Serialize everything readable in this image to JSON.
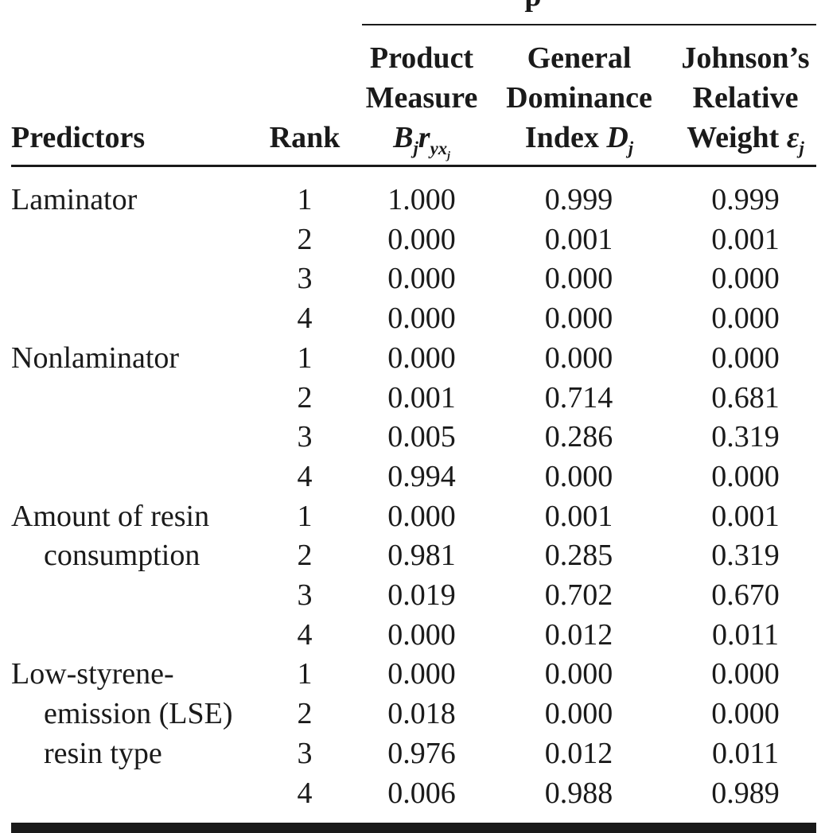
{
  "spanner_fragment": "p",
  "headers": {
    "predictors": "Predictors",
    "rank": "Rank",
    "product_measure": [
      "Product",
      "Measure"
    ],
    "product_measure_symbol": "Bjryxj",
    "general_dominance": [
      "General",
      "Dominance",
      "Index"
    ],
    "general_dominance_symbol": "Dj",
    "johnsons": [
      "Johnson’s",
      "Relative",
      "Weight"
    ],
    "johnsons_symbol": "εj"
  },
  "groups": [
    {
      "predictor_lines": [
        "Laminator"
      ],
      "rows": [
        {
          "rank": "1",
          "pm": "1.000",
          "gd": "0.999",
          "jr": "0.999"
        },
        {
          "rank": "2",
          "pm": "0.000",
          "gd": "0.001",
          "jr": "0.001"
        },
        {
          "rank": "3",
          "pm": "0.000",
          "gd": "0.000",
          "jr": "0.000"
        },
        {
          "rank": "4",
          "pm": "0.000",
          "gd": "0.000",
          "jr": "0.000"
        }
      ]
    },
    {
      "predictor_lines": [
        "Nonlaminator"
      ],
      "rows": [
        {
          "rank": "1",
          "pm": "0.000",
          "gd": "0.000",
          "jr": "0.000"
        },
        {
          "rank": "2",
          "pm": "0.001",
          "gd": "0.714",
          "jr": "0.681"
        },
        {
          "rank": "3",
          "pm": "0.005",
          "gd": "0.286",
          "jr": "0.319"
        },
        {
          "rank": "4",
          "pm": "0.994",
          "gd": "0.000",
          "jr": "0.000"
        }
      ]
    },
    {
      "predictor_lines": [
        "Amount of resin",
        "consumption"
      ],
      "rows": [
        {
          "rank": "1",
          "pm": "0.000",
          "gd": "0.001",
          "jr": "0.001"
        },
        {
          "rank": "2",
          "pm": "0.981",
          "gd": "0.285",
          "jr": "0.319"
        },
        {
          "rank": "3",
          "pm": "0.019",
          "gd": "0.702",
          "jr": "0.670"
        },
        {
          "rank": "4",
          "pm": "0.000",
          "gd": "0.012",
          "jr": "0.011"
        }
      ]
    },
    {
      "predictor_lines": [
        "Low-styrene-",
        "emission (LSE)",
        "resin type"
      ],
      "rows": [
        {
          "rank": "1",
          "pm": "0.000",
          "gd": "0.000",
          "jr": "0.000"
        },
        {
          "rank": "2",
          "pm": "0.018",
          "gd": "0.000",
          "jr": "0.000"
        },
        {
          "rank": "3",
          "pm": "0.976",
          "gd": "0.012",
          "jr": "0.011"
        },
        {
          "rank": "4",
          "pm": "0.006",
          "gd": "0.988",
          "jr": "0.989"
        }
      ]
    }
  ]
}
